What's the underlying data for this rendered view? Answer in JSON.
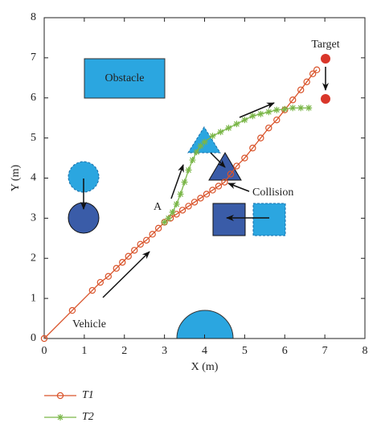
{
  "chart_data": {
    "type": "line",
    "xlabel": "X (m)",
    "ylabel": "Y (m)",
    "xlim": [
      0,
      8
    ],
    "ylim": [
      0,
      8
    ],
    "xticks": [
      0,
      1,
      2,
      3,
      4,
      5,
      6,
      7,
      8
    ],
    "yticks": [
      0,
      1,
      2,
      3,
      4,
      5,
      6,
      7,
      8
    ],
    "annotations": [
      "Target",
      "Obstacle",
      "A",
      "Collision",
      "Vehicle"
    ],
    "series": [
      {
        "name": "T1",
        "color": "#d9532a",
        "marker": "circle",
        "x": [
          0,
          0.7,
          1.2,
          1.4,
          1.6,
          1.8,
          1.95,
          2.1,
          2.25,
          2.4,
          2.55,
          2.7,
          2.85,
          3.0,
          3.15,
          3.3,
          3.45,
          3.6,
          3.75,
          3.9,
          4.05,
          4.2,
          4.35,
          4.5,
          4.65,
          4.8,
          5.0,
          5.2,
          5.4,
          5.6,
          5.8,
          6.0,
          6.2,
          6.4,
          6.55,
          6.7,
          6.8
        ],
        "values": [
          0,
          0.7,
          1.2,
          1.4,
          1.55,
          1.75,
          1.9,
          2.05,
          2.2,
          2.35,
          2.45,
          2.6,
          2.75,
          2.9,
          3.0,
          3.1,
          3.2,
          3.3,
          3.4,
          3.5,
          3.6,
          3.7,
          3.8,
          3.9,
          4.1,
          4.3,
          4.5,
          4.75,
          5.0,
          5.25,
          5.45,
          5.7,
          5.95,
          6.2,
          6.4,
          6.6,
          6.7
        ]
      },
      {
        "name": "T2",
        "color": "#7ab648",
        "marker": "star",
        "x": [
          3.0,
          3.1,
          3.2,
          3.3,
          3.4,
          3.5,
          3.6,
          3.7,
          3.8,
          3.9,
          4.0,
          4.2,
          4.4,
          4.6,
          4.8,
          5.0,
          5.2,
          5.4,
          5.6,
          5.8,
          6.0,
          6.2,
          6.4,
          6.6
        ],
        "values": [
          2.9,
          3.0,
          3.15,
          3.35,
          3.6,
          3.9,
          4.2,
          4.45,
          4.65,
          4.8,
          4.9,
          5.05,
          5.15,
          5.25,
          5.35,
          5.45,
          5.55,
          5.6,
          5.65,
          5.7,
          5.72,
          5.75,
          5.75,
          5.75
        ]
      }
    ]
  }
}
